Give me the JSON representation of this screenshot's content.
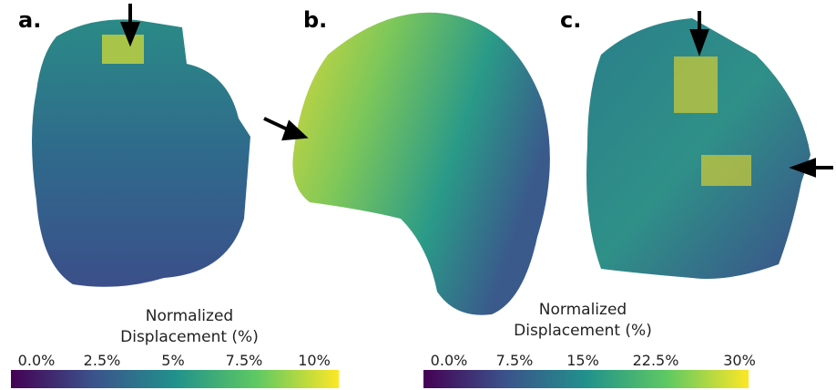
{
  "panels": [
    {
      "label": "a."
    },
    {
      "label": "b."
    },
    {
      "label": "c."
    }
  ],
  "colorbars": [
    {
      "title_lines": [
        "Normalized",
        "Displacement (%)"
      ],
      "ticks": [
        "0.0%",
        "2.5%",
        "5%",
        "7.5%",
        "10%"
      ]
    },
    {
      "title_lines": [
        "Normalized",
        "Displacement (%)"
      ],
      "ticks": [
        "0.0%",
        "7.5%",
        "15%",
        "22.5%",
        "30%"
      ]
    }
  ]
}
